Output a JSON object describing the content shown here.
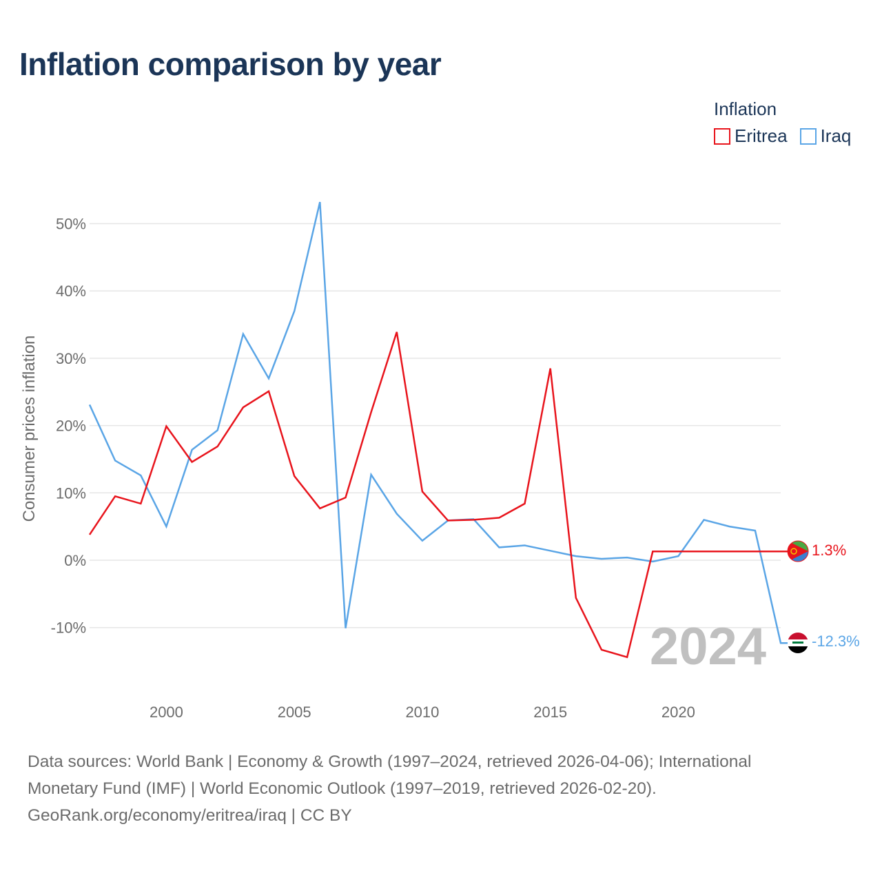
{
  "title": "Inflation comparison by year",
  "legend": {
    "title": "Inflation",
    "items": [
      {
        "label": "Eritrea",
        "color": "#e8141c"
      },
      {
        "label": "Iraq",
        "color": "#5aa5e6"
      }
    ]
  },
  "chart_data": {
    "type": "line",
    "title": "Inflation comparison by year",
    "ylabel": "Consumer prices inflation",
    "xlabel": "",
    "xlim": [
      1997,
      2024
    ],
    "ylim": [
      -15,
      53
    ],
    "y_ticks": [
      {
        "value": 50,
        "label": "50%"
      },
      {
        "value": 40,
        "label": "40%"
      },
      {
        "value": 30,
        "label": "30%"
      },
      {
        "value": 20,
        "label": "20%"
      },
      {
        "value": 10,
        "label": "10%"
      },
      {
        "value": 0,
        "label": "0%"
      },
      {
        "value": -10,
        "label": "-10%"
      }
    ],
    "x_ticks": [
      {
        "value": 2000,
        "label": "2000"
      },
      {
        "value": 2005,
        "label": "2005"
      },
      {
        "value": 2010,
        "label": "2010"
      },
      {
        "value": 2015,
        "label": "2015"
      },
      {
        "value": 2020,
        "label": "2020"
      }
    ],
    "grid": true,
    "year_watermark": "2024",
    "series": [
      {
        "name": "Eritrea",
        "color": "#e8141c",
        "end_label": "1.3%",
        "flag": "eritrea-flag",
        "points": [
          [
            1997,
            3.8
          ],
          [
            1998,
            9.5
          ],
          [
            1999,
            8.4
          ],
          [
            2000,
            19.9
          ],
          [
            2001,
            14.6
          ],
          [
            2002,
            16.9
          ],
          [
            2003,
            22.7
          ],
          [
            2004,
            25.1
          ],
          [
            2005,
            12.5
          ],
          [
            2006,
            7.7
          ],
          [
            2007,
            9.3
          ],
          [
            2008,
            22.0
          ],
          [
            2009,
            33.9
          ],
          [
            2010,
            10.2
          ],
          [
            2011,
            5.9
          ],
          [
            2012,
            6.0
          ],
          [
            2013,
            6.3
          ],
          [
            2014,
            8.4
          ],
          [
            2015,
            28.5
          ],
          [
            2016,
            -5.6
          ],
          [
            2017,
            -13.3
          ],
          [
            2018,
            -14.4
          ],
          [
            2019,
            1.3
          ],
          [
            2024,
            1.3
          ]
        ]
      },
      {
        "name": "Iraq",
        "color": "#5aa5e6",
        "end_label": "-12.3%",
        "flag": "iraq-flag",
        "points": [
          [
            1997,
            23.1
          ],
          [
            1998,
            14.8
          ],
          [
            1999,
            12.6
          ],
          [
            2000,
            5.0
          ],
          [
            2001,
            16.4
          ],
          [
            2002,
            19.3
          ],
          [
            2003,
            33.6
          ],
          [
            2004,
            27.0
          ],
          [
            2005,
            37.0
          ],
          [
            2006,
            53.2
          ],
          [
            2007,
            -10.1
          ],
          [
            2008,
            12.7
          ],
          [
            2009,
            6.9
          ],
          [
            2010,
            2.9
          ],
          [
            2011,
            5.9
          ],
          [
            2012,
            6.1
          ],
          [
            2013,
            1.9
          ],
          [
            2014,
            2.2
          ],
          [
            2015,
            1.4
          ],
          [
            2016,
            0.6
          ],
          [
            2017,
            0.2
          ],
          [
            2018,
            0.4
          ],
          [
            2019,
            -0.2
          ],
          [
            2020,
            0.6
          ],
          [
            2021,
            6.0
          ],
          [
            2022,
            5.0
          ],
          [
            2023,
            4.4
          ],
          [
            2024,
            -12.3
          ]
        ]
      }
    ]
  },
  "footer": {
    "line1": "Data sources: World Bank | Economy & Growth (1997–2024, retrieved 2026-04-06); International",
    "line2": "Monetary Fund (IMF) | World Economic Outlook (1997–2019, retrieved 2026-02-20).",
    "line3": "GeoRank.org/economy/eritrea/iraq | CC BY"
  }
}
